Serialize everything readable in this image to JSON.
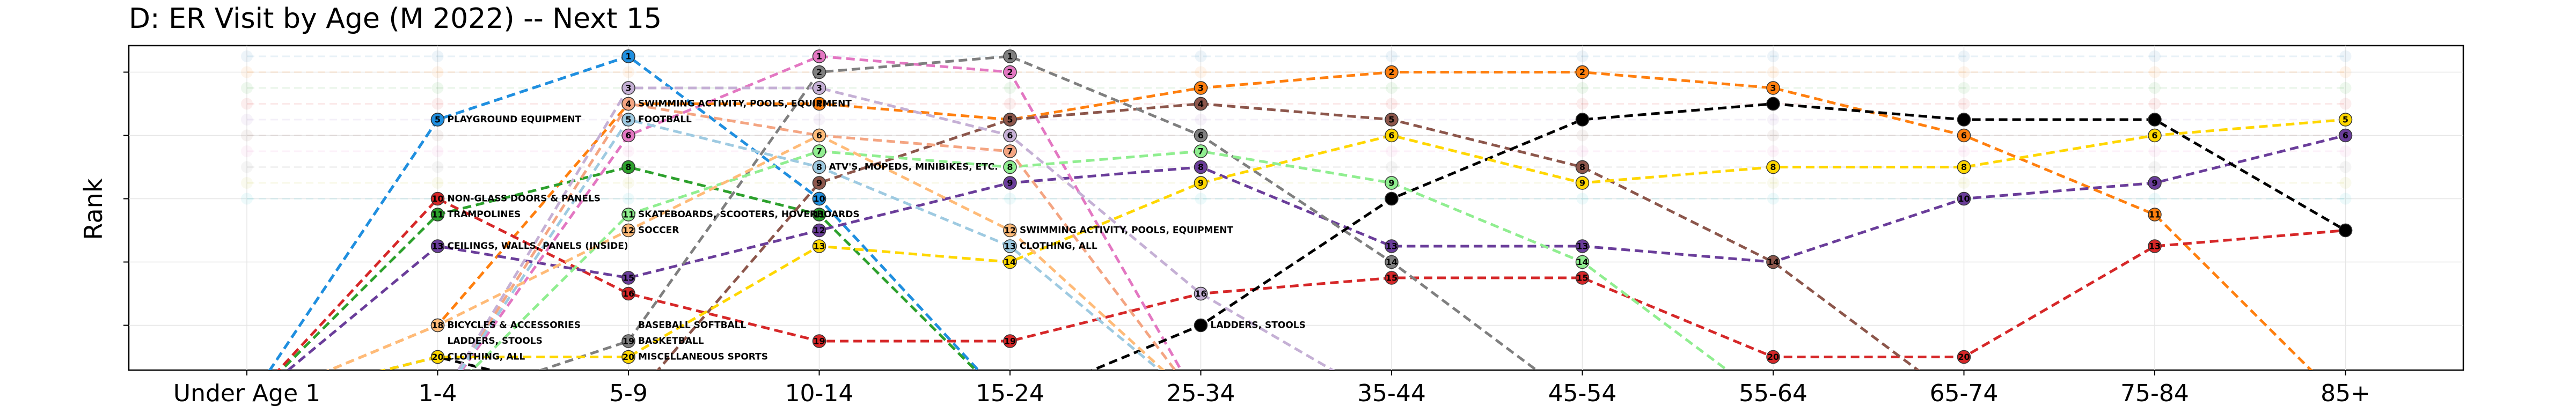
{
  "chart_data": {
    "type": "line",
    "title": "D: ER Visit by Age (M 2022) -- Next 15",
    "ylabel": "Rank",
    "xlabel": "",
    "categories": [
      "Under Age 1",
      "1-4",
      "5-9",
      "10-14",
      "15-24",
      "25-34",
      "35-44",
      "45-54",
      "55-64",
      "65-74",
      "75-84",
      "85+"
    ],
    "ylim": [
      21,
      0
    ],
    "grid": true,
    "series": [
      {
        "color": "#1f77b4",
        "values": [
          null,
          5,
          1,
          10,
          null,
          null,
          null,
          null,
          null,
          null,
          null,
          null
        ]
      },
      {
        "color": "#1f8fe0",
        "values": [
          null,
          5,
          1,
          10,
          null,
          null,
          null,
          null,
          null,
          null,
          null,
          null
        ]
      },
      {
        "color": "#ff7f0e",
        "values": [
          null,
          18,
          4,
          4,
          5,
          3,
          2,
          2,
          3,
          6,
          11,
          null
        ]
      },
      {
        "color": "#2ca02c",
        "values": [
          null,
          11,
          8,
          11,
          null,
          null,
          null,
          null,
          null,
          null,
          null,
          null
        ]
      },
      {
        "color": "#d62728",
        "values": [
          null,
          10,
          16,
          19,
          19,
          16,
          15,
          15,
          20,
          20,
          13,
          12
        ]
      },
      {
        "color": "#6a3d9a",
        "values": [
          null,
          13,
          15,
          12,
          9,
          8,
          13,
          13,
          14,
          10,
          9,
          6
        ]
      },
      {
        "color": "#8c564b",
        "values": [
          null,
          null,
          null,
          9,
          5,
          4,
          5,
          8,
          14,
          null,
          null,
          null
        ]
      },
      {
        "color": "#e377c2",
        "values": [
          null,
          null,
          6,
          1,
          2,
          null,
          null,
          null,
          null,
          null,
          null,
          null
        ]
      },
      {
        "color": "#7f7f7f",
        "values": [
          null,
          null,
          19,
          2,
          1,
          6,
          14,
          null,
          null,
          null,
          null,
          null
        ]
      },
      {
        "color": "#000000",
        "values": [
          null,
          20,
          null,
          null,
          null,
          18,
          10,
          5,
          4,
          5,
          5,
          12
        ]
      },
      {
        "color": "#ffd700",
        "values": [
          null,
          20,
          20,
          13,
          14,
          9,
          6,
          9,
          8,
          8,
          6,
          5
        ]
      },
      {
        "color": "#90ee90",
        "values": [
          null,
          null,
          11,
          7,
          8,
          7,
          9,
          14,
          null,
          null,
          null,
          null
        ]
      },
      {
        "color": "#f4a582",
        "values": [
          null,
          null,
          4,
          6,
          7,
          null,
          null,
          null,
          null,
          null,
          null,
          null
        ]
      },
      {
        "color": "#c5b0d5",
        "values": [
          null,
          null,
          3,
          3,
          6,
          16,
          null,
          null,
          null,
          null,
          null,
          null
        ]
      },
      {
        "color": "#9ecae1",
        "values": [
          null,
          null,
          5,
          8,
          13,
          null,
          null,
          null,
          null,
          null,
          null,
          null
        ]
      },
      {
        "color": "#ffbb78",
        "values": [
          null,
          18,
          12,
          6,
          12,
          null,
          null,
          null,
          null,
          null,
          null,
          null
        ]
      }
    ],
    "annotations": [
      {
        "x": "1-4",
        "y": 5,
        "text": "PLAYGROUND EQUIPMENT"
      },
      {
        "x": "1-4",
        "y": 10,
        "text": "NON-GLASS DOORS & PANELS"
      },
      {
        "x": "1-4",
        "y": 11,
        "text": "TRAMPOLINES"
      },
      {
        "x": "1-4",
        "y": 13,
        "text": "CEILINGS, WALLS, PANELS (INSIDE)"
      },
      {
        "x": "1-4",
        "y": 18,
        "text": "BICYCLES & ACCESSORIES"
      },
      {
        "x": "1-4",
        "y": 19,
        "text": "LADDERS, STOOLS"
      },
      {
        "x": "1-4",
        "y": 20,
        "text": "CLOTHING, ALL"
      },
      {
        "x": "5-9",
        "y": 4,
        "text": "SWIMMING ACTIVITY, POOLS, EQUIPMENT"
      },
      {
        "x": "5-9",
        "y": 5,
        "text": "FOOTBALL"
      },
      {
        "x": "5-9",
        "y": 11,
        "text": "SKATEBOARDS, SCOOTERS, HOVERBOARDS"
      },
      {
        "x": "5-9",
        "y": 12,
        "text": "SOCCER"
      },
      {
        "x": "5-9",
        "y": 18,
        "text": "BASEBALL SOFTBALL"
      },
      {
        "x": "5-9",
        "y": 19,
        "text": "BASKETBALL"
      },
      {
        "x": "5-9",
        "y": 20,
        "text": "MISCELLANEOUS SPORTS"
      },
      {
        "x": "10-14",
        "y": 8,
        "text": "ATV'S, MOPEDS, MINIBIKES, ETC."
      },
      {
        "x": "15-24",
        "y": 12,
        "text": "SWIMMING ACTIVITY, POOLS, EQUIPMENT"
      },
      {
        "x": "15-24",
        "y": 13,
        "text": "CLOTHING, ALL"
      },
      {
        "x": "25-34",
        "y": 18,
        "text": "LADDERS, STOOLS"
      }
    ]
  }
}
